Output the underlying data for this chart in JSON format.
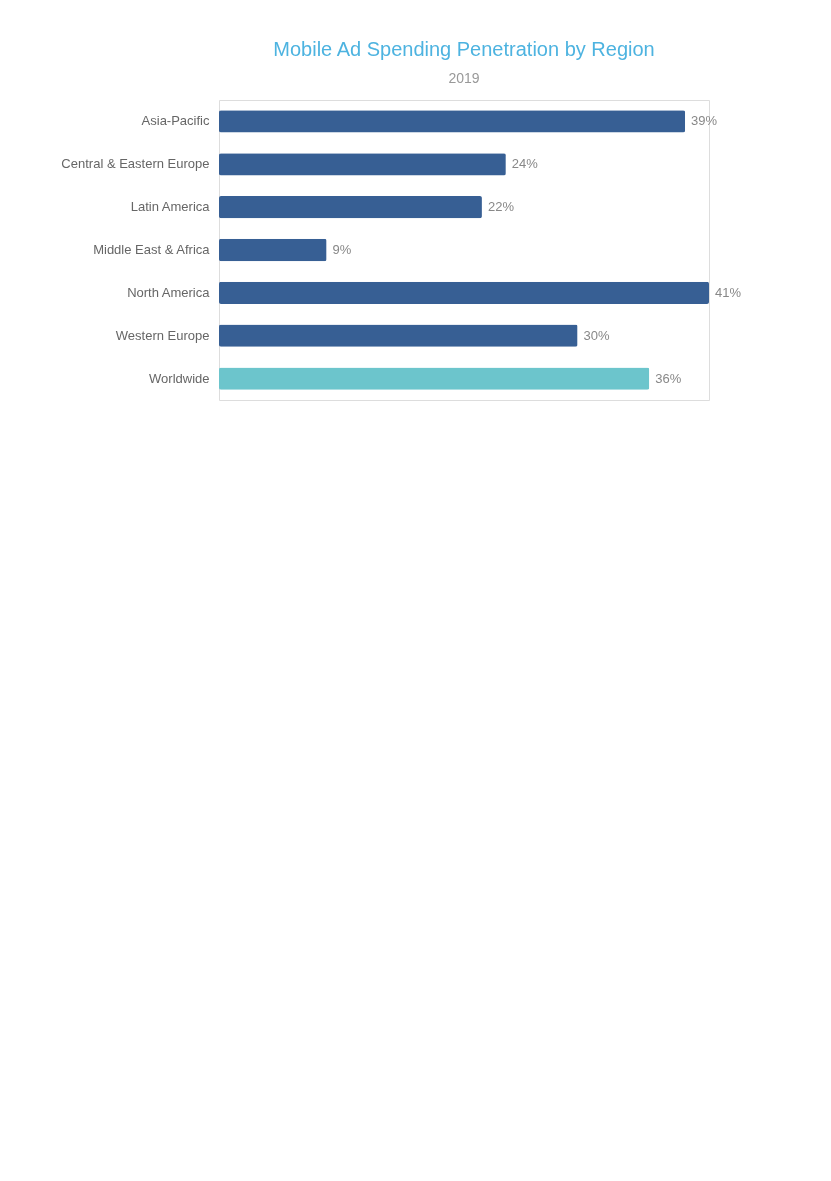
{
  "chart_data": {
    "type": "bar",
    "orientation": "horizontal",
    "title": "Mobile Ad Spending Penetration by Region",
    "subtitle": "2019",
    "categories": [
      "Asia-Pacific",
      "Central & Eastern Europe",
      "Latin America",
      "Middle East & Africa",
      "North America",
      "Western Europe",
      "Worldwide"
    ],
    "values": [
      39,
      24,
      22,
      9,
      41,
      30,
      36
    ],
    "colors": [
      "#375f94",
      "#375f94",
      "#375f94",
      "#375f94",
      "#375f94",
      "#375f94",
      "#6cc5cc"
    ],
    "value_labels": [
      "39%",
      "24%",
      "22%",
      "9%",
      "41%",
      "30%",
      "36%"
    ]
  }
}
